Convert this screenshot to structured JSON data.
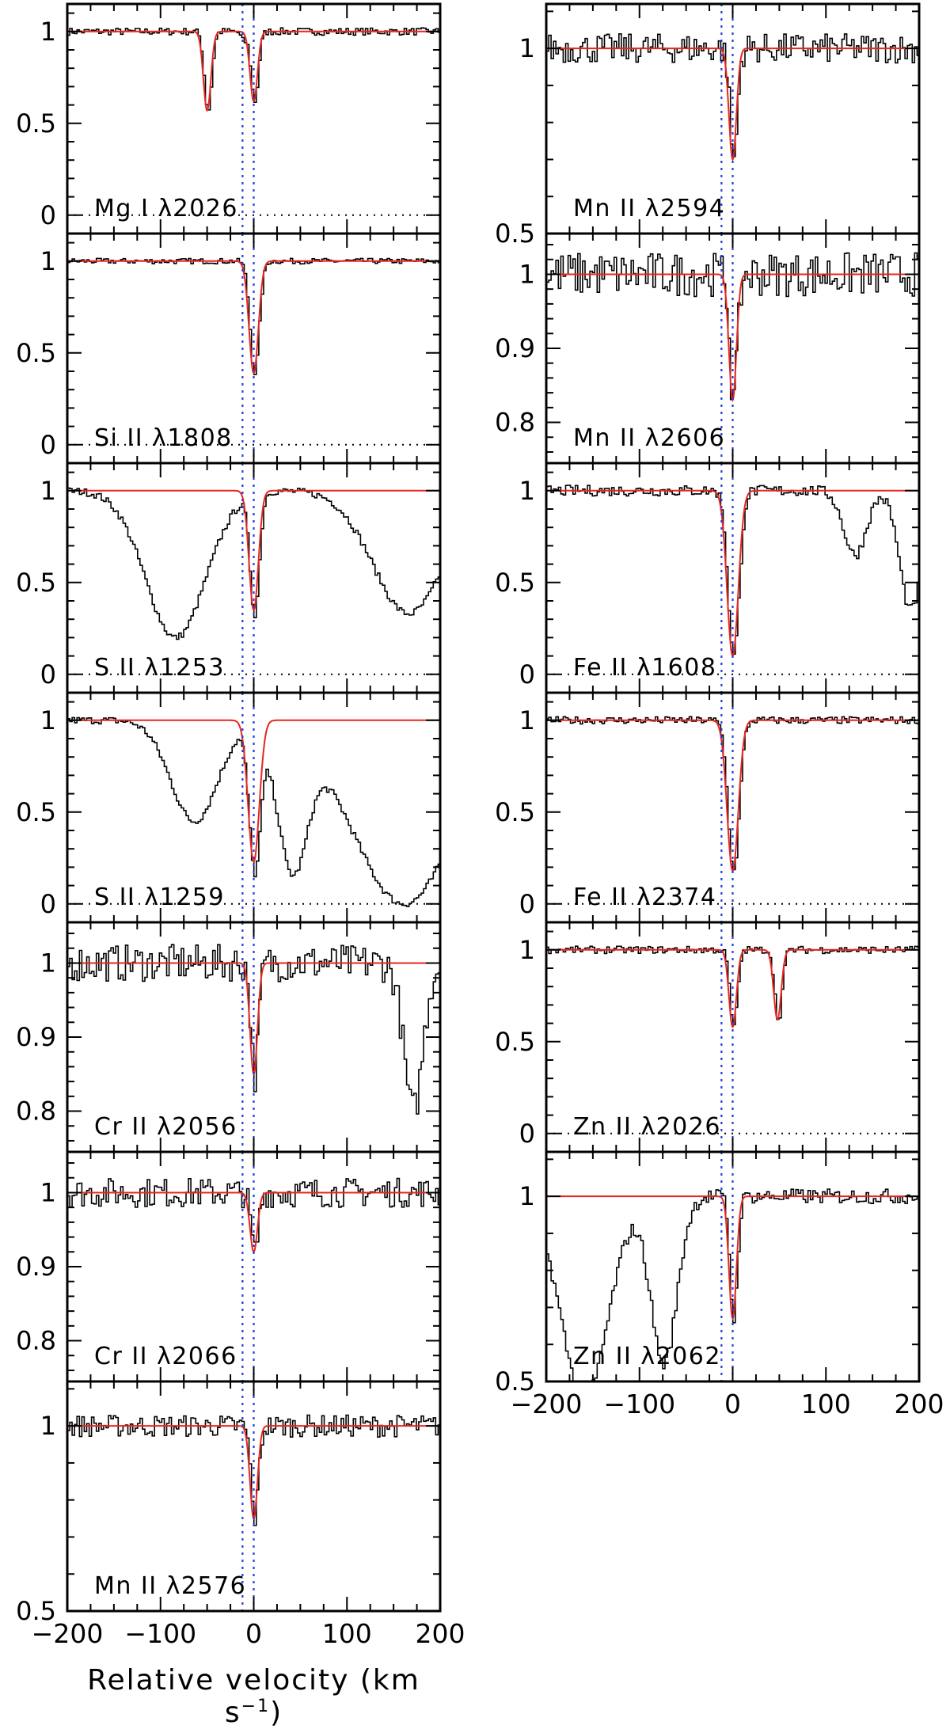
{
  "figure": {
    "xlabel": "Relative velocity (km s",
    "xlabel_exp": "−1",
    "xlabel_close": ")"
  },
  "colors": {
    "fit": "#e8261e",
    "data": "#000000",
    "marker": "#1f3fd6",
    "frame": "#000000"
  },
  "chart_data": [
    {
      "type": "line",
      "ion": "Mg I",
      "lambda": "λ2026",
      "xlim": [
        -200,
        200
      ],
      "ylim": [
        -0.1,
        1.15
      ],
      "yticks": [
        0,
        0.5,
        1
      ],
      "ytick_labels": [
        "0",
        "0.5",
        "1"
      ],
      "xticks": [
        -200,
        -100,
        0,
        100,
        200
      ],
      "xtick_labels": [],
      "continuum": 1,
      "zero_line": true,
      "fit": [
        {
          "center": -50,
          "depth": 0.43,
          "width": 4
        },
        {
          "center": 0,
          "depth": 0.38,
          "width": 4
        }
      ],
      "noise": 0.02,
      "extra_dips": [
        {
          "center": -12,
          "depth": 0.05,
          "width": 3
        }
      ]
    },
    {
      "type": "line",
      "ion": "Si II",
      "lambda": "λ1808",
      "xlim": [
        -200,
        200
      ],
      "ylim": [
        -0.1,
        1.15
      ],
      "yticks": [
        0,
        0.5,
        1
      ],
      "ytick_labels": [
        "0",
        "0.5",
        "1"
      ],
      "xticks": [
        -200,
        -100,
        0,
        100,
        200
      ],
      "xtick_labels": [],
      "continuum": 1,
      "zero_line": true,
      "fit": [
        {
          "center": 0,
          "depth": 0.61,
          "width": 5
        }
      ],
      "noise": 0.015,
      "extra_dips": []
    },
    {
      "type": "line",
      "ion": "S II",
      "lambda": "λ1253",
      "xlim": [
        -200,
        200
      ],
      "ylim": [
        -0.1,
        1.15
      ],
      "yticks": [
        0,
        0.5,
        1
      ],
      "ytick_labels": [
        "0",
        "0.5",
        "1"
      ],
      "xticks": [
        -200,
        -100,
        0,
        100,
        200
      ],
      "xtick_labels": [],
      "continuum": 1,
      "zero_line": true,
      "fit": [
        {
          "center": 0,
          "depth": 0.65,
          "width": 5
        }
      ],
      "noise": 0.02,
      "extra_dips": [
        {
          "center": -85,
          "depth": 0.8,
          "width": 32
        },
        {
          "center": 165,
          "depth": 0.67,
          "width": 38
        }
      ]
    },
    {
      "type": "line",
      "ion": "S II",
      "lambda": "λ1259",
      "xlim": [
        -200,
        200
      ],
      "ylim": [
        -0.1,
        1.15
      ],
      "yticks": [
        0,
        0.5,
        1
      ],
      "ytick_labels": [
        "0",
        "0.5",
        "1"
      ],
      "xticks": [
        -200,
        -100,
        0,
        100,
        200
      ],
      "xtick_labels": [],
      "continuum": 1,
      "zero_line": true,
      "fit": [
        {
          "center": 0,
          "depth": 0.77,
          "width": 6
        }
      ],
      "noise": 0.02,
      "extra_dips": [
        {
          "center": -65,
          "depth": 0.55,
          "width": 25
        },
        {
          "center": 40,
          "depth": 0.75,
          "width": 16
        },
        {
          "center": 160,
          "depth": 1.0,
          "width": 55
        }
      ]
    },
    {
      "type": "line",
      "ion": "Cr II",
      "lambda": "λ2056",
      "xlim": [
        -200,
        200
      ],
      "ylim": [
        0.745,
        1.055
      ],
      "yticks": [
        0.8,
        0.9,
        1
      ],
      "ytick_labels": [
        "0.8",
        "0.9",
        "1"
      ],
      "xticks": [
        -200,
        -100,
        0,
        100,
        200
      ],
      "xtick_labels": [],
      "continuum": 1,
      "zero_line": false,
      "fit": [
        {
          "center": 0,
          "depth": 0.15,
          "width": 4
        }
      ],
      "noise": 0.025,
      "extra_dips": [
        {
          "center": 170,
          "depth": 0.2,
          "width": 10
        }
      ]
    },
    {
      "type": "line",
      "ion": "Cr II",
      "lambda": "λ2066",
      "xlim": [
        -200,
        200
      ],
      "ylim": [
        0.745,
        1.055
      ],
      "yticks": [
        0.8,
        0.9,
        1
      ],
      "ytick_labels": [
        "0.8",
        "0.9",
        "1"
      ],
      "xticks": [
        -200,
        -100,
        0,
        100,
        200
      ],
      "xtick_labels": [],
      "continuum": 1,
      "zero_line": false,
      "fit": [
        {
          "center": 0,
          "depth": 0.08,
          "width": 4
        }
      ],
      "noise": 0.02,
      "extra_dips": []
    },
    {
      "type": "line",
      "ion": "Mn II",
      "lambda": "λ2576",
      "xlim": [
        -200,
        200
      ],
      "ylim": [
        0.5,
        1.12
      ],
      "yticks": [
        0.5,
        1
      ],
      "ytick_labels": [
        "0.5",
        "1"
      ],
      "xticks": [
        -200,
        -100,
        0,
        100,
        200
      ],
      "xtick_labels": [
        "−200",
        "−100",
        "0",
        "100",
        "200"
      ],
      "continuum": 1,
      "zero_line": false,
      "fit": [
        {
          "center": 0,
          "depth": 0.25,
          "width": 4
        }
      ],
      "noise": 0.03,
      "extra_dips": []
    },
    {
      "type": "line",
      "ion": "Mn II",
      "lambda": "λ2594",
      "xlim": [
        -200,
        200
      ],
      "ylim": [
        0.5,
        1.12
      ],
      "yticks": [
        0.5,
        1
      ],
      "ytick_labels": [
        "0.5",
        "1"
      ],
      "xticks": [
        -200,
        -100,
        0,
        100,
        200
      ],
      "xtick_labels": [],
      "continuum": 1,
      "zero_line": false,
      "fit": [
        {
          "center": 0,
          "depth": 0.3,
          "width": 4
        }
      ],
      "noise": 0.04,
      "extra_dips": []
    },
    {
      "type": "line",
      "ion": "Mn II",
      "lambda": "λ2606",
      "xlim": [
        -200,
        200
      ],
      "ylim": [
        0.745,
        1.055
      ],
      "yticks": [
        0.8,
        0.9,
        1
      ],
      "ytick_labels": [
        "0.8",
        "0.9",
        "1"
      ],
      "xticks": [
        -200,
        -100,
        0,
        100,
        200
      ],
      "xtick_labels": [],
      "continuum": 1,
      "zero_line": false,
      "fit": [
        {
          "center": 0,
          "depth": 0.17,
          "width": 4
        }
      ],
      "noise": 0.03,
      "extra_dips": []
    },
    {
      "type": "line",
      "ion": "Fe II",
      "lambda": "λ1608",
      "xlim": [
        -200,
        200
      ],
      "ylim": [
        -0.1,
        1.15
      ],
      "yticks": [
        0,
        0.5,
        1
      ],
      "ytick_labels": [
        "0",
        "0.5",
        "1"
      ],
      "xticks": [
        -200,
        -100,
        0,
        100,
        200
      ],
      "xtick_labels": [],
      "continuum": 1,
      "zero_line": true,
      "fit": [
        {
          "center": 0,
          "depth": 0.9,
          "width": 6
        }
      ],
      "noise": 0.03,
      "extra_dips": [
        {
          "center": 130,
          "depth": 0.35,
          "width": 12
        },
        {
          "center": 190,
          "depth": 0.65,
          "width": 12
        }
      ]
    },
    {
      "type": "line",
      "ion": "Fe II",
      "lambda": "λ2374",
      "xlim": [
        -200,
        200
      ],
      "ylim": [
        -0.1,
        1.15
      ],
      "yticks": [
        0,
        0.5,
        1
      ],
      "ytick_labels": [
        "0",
        "0.5",
        "1"
      ],
      "xticks": [
        -200,
        -100,
        0,
        100,
        200
      ],
      "xtick_labels": [],
      "continuum": 1,
      "zero_line": true,
      "fit": [
        {
          "center": 0,
          "depth": 0.82,
          "width": 6
        }
      ],
      "noise": 0.02,
      "extra_dips": []
    },
    {
      "type": "line",
      "ion": "Zn II",
      "lambda": "λ2026",
      "xlim": [
        -200,
        200
      ],
      "ylim": [
        -0.1,
        1.15
      ],
      "yticks": [
        0,
        0.5,
        1
      ],
      "ytick_labels": [
        "0",
        "0.5",
        "1"
      ],
      "xticks": [
        -200,
        -100,
        0,
        100,
        200
      ],
      "xtick_labels": [],
      "continuum": 1,
      "zero_line": true,
      "fit": [
        {
          "center": 0,
          "depth": 0.42,
          "width": 4
        },
        {
          "center": 48,
          "depth": 0.38,
          "width": 4
        }
      ],
      "noise": 0.02,
      "extra_dips": []
    },
    {
      "type": "line",
      "ion": "Zn II",
      "lambda": "λ2062",
      "xlim": [
        -200,
        200
      ],
      "ylim": [
        0.5,
        1.12
      ],
      "yticks": [
        0.5,
        1
      ],
      "ytick_labels": [
        "0.5",
        "1"
      ],
      "xticks": [
        -200,
        -100,
        0,
        100,
        200
      ],
      "xtick_labels": [
        "−200",
        "−100",
        "0",
        "100",
        "200"
      ],
      "continuum": 1,
      "zero_line": false,
      "fit": [
        {
          "center": 0,
          "depth": 0.33,
          "width": 4
        }
      ],
      "noise": 0.02,
      "extra_dips": [
        {
          "center": -160,
          "depth": 0.55,
          "width": 25
        },
        {
          "center": -75,
          "depth": 0.45,
          "width": 14
        }
      ]
    }
  ]
}
